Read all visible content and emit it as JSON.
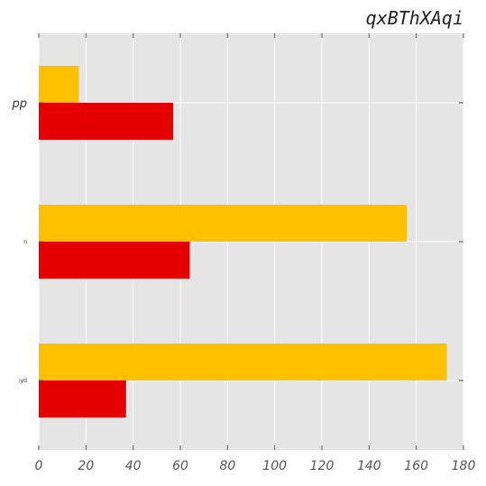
{
  "chart_data": {
    "type": "bar",
    "orientation": "horizontal",
    "title": "qxBThXAqi",
    "xlabel": "",
    "ylabel": "",
    "categories": [
      "pp",
      "n",
      "iyd"
    ],
    "series": [
      {
        "values": [
          17,
          156,
          173
        ],
        "color": "#ffc000"
      },
      {
        "values": [
          57,
          64,
          37
        ],
        "color": "#e50000"
      }
    ],
    "xlim": [
      0,
      180
    ],
    "xticks": [
      0,
      20,
      40,
      60,
      80,
      100,
      120,
      140,
      160,
      180
    ],
    "grid": true,
    "background": "#e5e5e5",
    "legend": "none"
  }
}
